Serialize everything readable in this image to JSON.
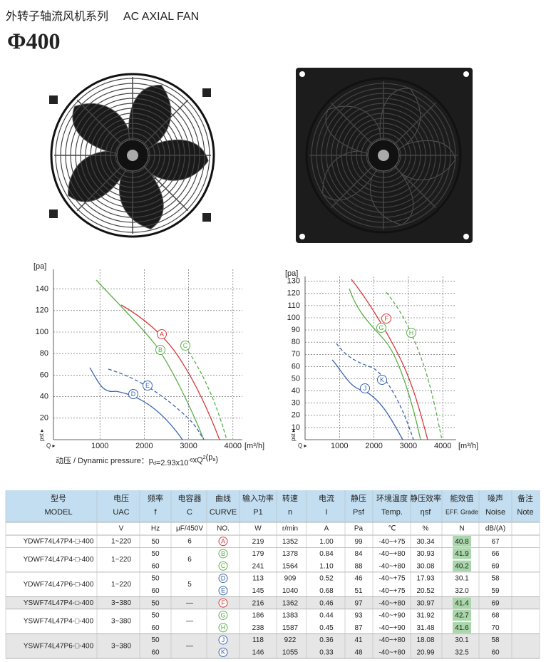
{
  "header": {
    "title_cn": "外转子轴流风机系列",
    "title_en": "AC AXIAL FAN",
    "model_size": "Φ400"
  },
  "charts": [
    {
      "y_unit": "[pa]",
      "x_unit": "[m³/h]",
      "x_axis_symbol": "Q ▸",
      "y_axis_symbol": "pst ▸",
      "xticks": [
        1000,
        2000,
        3000,
        4000
      ],
      "yticks": [
        20,
        40,
        60,
        80,
        100,
        120,
        140
      ],
      "curves": [
        {
          "label": "A",
          "color": "#d83a3a",
          "dashed": false
        },
        {
          "label": "B",
          "color": "#5bb04a",
          "dashed": false
        },
        {
          "label": "C",
          "color": "#5bb04a",
          "dashed": true
        },
        {
          "label": "D",
          "color": "#3a66b0",
          "dashed": false
        },
        {
          "label": "E",
          "color": "#3a66b0",
          "dashed": true
        }
      ]
    },
    {
      "y_unit": "[pa]",
      "x_unit": "[m³/h]",
      "x_axis_symbol": "Q ▸",
      "y_axis_symbol": "pst ▸",
      "xticks": [
        1000,
        2000,
        3000,
        4000
      ],
      "yticks": [
        10,
        20,
        30,
        40,
        50,
        60,
        70,
        80,
        90,
        100,
        110,
        120,
        130
      ],
      "curves": [
        {
          "label": "F",
          "color": "#d83a3a",
          "dashed": false
        },
        {
          "label": "G",
          "color": "#5bb04a",
          "dashed": false
        },
        {
          "label": "H",
          "color": "#5bb04a",
          "dashed": true
        },
        {
          "label": "J",
          "color": "#3a66b0",
          "dashed": false
        },
        {
          "label": "K",
          "color": "#3a66b0",
          "dashed": true
        }
      ]
    }
  ],
  "formula": [
    "动压 / Dynamic pressure：p",
    {
      "sub": "d"
    },
    "=2.93x10",
    {
      "sup": "-6"
    },
    "xQ",
    {
      "sup": "2"
    },
    "(p",
    {
      "sub": "a"
    },
    ")"
  ],
  "table": {
    "header_cn": [
      "型号",
      "电压",
      "频率",
      "电容器",
      "曲线",
      "输入功率",
      "转速",
      "电流",
      "静压",
      "环境温度",
      "静压效率",
      "能效值",
      "噪声",
      "备注"
    ],
    "header_en": [
      "MODEL",
      "UAC",
      "f",
      "C",
      "CURVE",
      "P1",
      "n",
      "I",
      "Psf",
      "Temp.",
      "ηsf",
      "EFF. Grade",
      "Noise",
      "Note"
    ],
    "units": [
      null,
      "V",
      "Hz",
      "μF/450V",
      "NO.",
      "W",
      "r/min",
      "A",
      "Pa",
      "℃",
      "%",
      "N",
      "dB/(A)",
      null
    ],
    "highlight_color": "#a9d6aa",
    "groups": [
      {
        "model": "YDWF74L47P4-□-400",
        "voltage": "1~220",
        "capacitor": "6",
        "shaded": false,
        "rows": [
          {
            "cells": [
              "50",
              "A",
              "219",
              "1352",
              "1.00",
              "99",
              "-40~+75",
              "30.34",
              "40.8",
              "67"
            ],
            "highlight": true
          }
        ]
      },
      {
        "model": "YDWF74L47P4-□-400",
        "voltage": "1~220",
        "capacitor": "6",
        "shaded": false,
        "rows": [
          {
            "cells": [
              "50",
              "B",
              "179",
              "1378",
              "0.84",
              "84",
              "-40~+80",
              "30.93",
              "41.9",
              "66"
            ],
            "highlight": true
          },
          {
            "cells": [
              "60",
              "C",
              "241",
              "1564",
              "1.10",
              "88",
              "-40~+80",
              "30.08",
              "40.2",
              "69"
            ],
            "highlight": true
          }
        ]
      },
      {
        "model": "YDWF74L47P6-□-400",
        "voltage": "1~220",
        "capacitor": "5",
        "shaded": false,
        "rows": [
          {
            "cells": [
              "50",
              "D",
              "113",
              "909",
              "0.52",
              "46",
              "-40~+75",
              "17.93",
              "30.1",
              "58"
            ],
            "highlight": false
          },
          {
            "cells": [
              "60",
              "E",
              "145",
              "1040",
              "0.68",
              "51",
              "-40~+75",
              "20.52",
              "32.0",
              "59"
            ],
            "highlight": false
          }
        ]
      },
      {
        "model": "YSWF74L47P4-□-400",
        "voltage": "3~380",
        "capacitor": "—",
        "shaded": true,
        "rows": [
          {
            "cells": [
              "50",
              "F",
              "216",
              "1362",
              "0.46",
              "97",
              "-40~+80",
              "30.97",
              "41.4",
              "69"
            ],
            "highlight": true
          }
        ]
      },
      {
        "model": "YSWF74L47P4-□-400",
        "voltage": "3~380",
        "capacitor": "—",
        "shaded": false,
        "rows": [
          {
            "cells": [
              "50",
              "G",
              "186",
              "1383",
              "0.44",
              "93",
              "-40~+90",
              "31.92",
              "42.7",
              "68"
            ],
            "highlight": true
          },
          {
            "cells": [
              "60",
              "H",
              "238",
              "1587",
              "0.45",
              "87",
              "-40~+90",
              "31.48",
              "41.6",
              "70"
            ],
            "highlight": true
          }
        ]
      },
      {
        "model": "YSWF74L47P6-□-400",
        "voltage": "3~380",
        "capacitor": "—",
        "shaded": true,
        "rows": [
          {
            "cells": [
              "50",
              "J",
              "118",
              "922",
              "0.36",
              "41",
              "-40~+80",
              "18.08",
              "30.1",
              "58"
            ],
            "highlight": false
          },
          {
            "cells": [
              "60",
              "K",
              "146",
              "1055",
              "0.33",
              "48",
              "-40~+80",
              "20.99",
              "32.5",
              "60"
            ],
            "highlight": false
          }
        ]
      }
    ]
  }
}
